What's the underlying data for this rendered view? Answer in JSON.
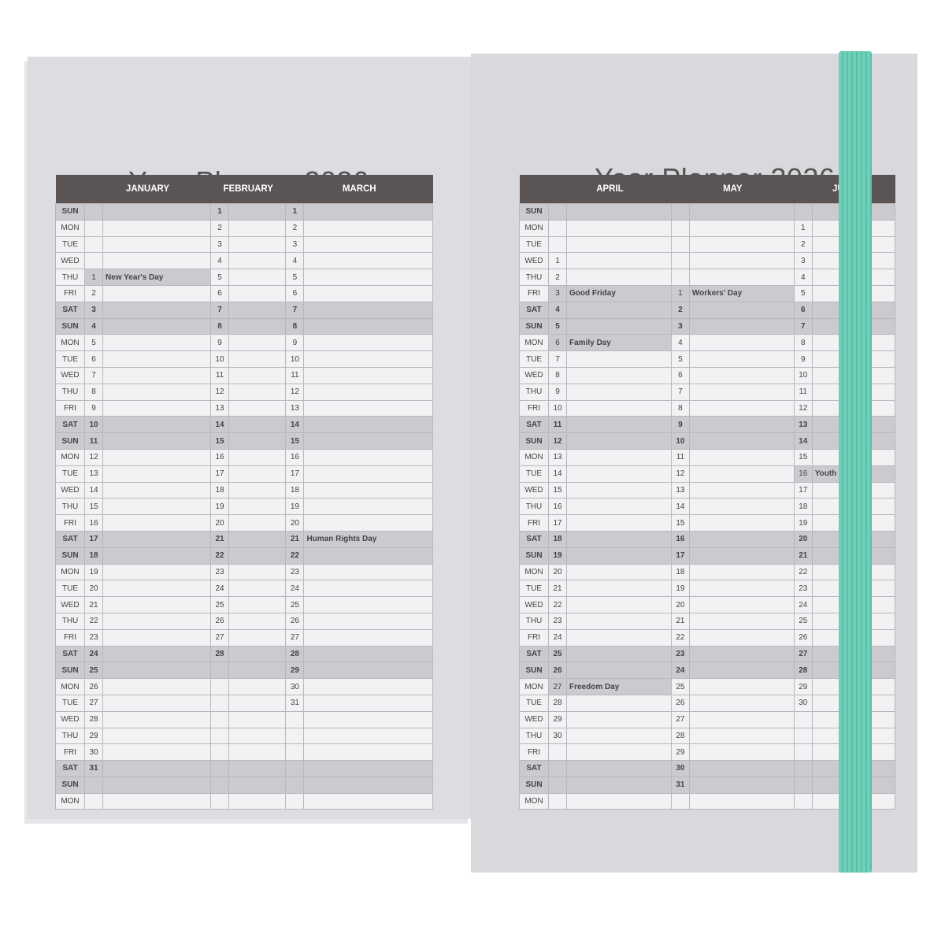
{
  "weekday_rows": [
    "SUN",
    "MON",
    "TUE",
    "WED",
    "THU",
    "FRI",
    "SAT",
    "SUN",
    "MON",
    "TUE",
    "WED",
    "THU",
    "FRI",
    "SAT",
    "SUN",
    "MON",
    "TUE",
    "WED",
    "THU",
    "FRI",
    "SAT",
    "SUN",
    "MON",
    "TUE",
    "WED",
    "THU",
    "FRI",
    "SAT",
    "SUN",
    "MON",
    "TUE",
    "WED",
    "THU",
    "FRI",
    "SAT",
    "SUN",
    "MON"
  ],
  "left_page": {
    "title": "Year Planner 2026",
    "months": [
      {
        "name": "JANUARY",
        "start_row": 4,
        "days": 31,
        "holidays": {
          "1": "New Year's Day"
        }
      },
      {
        "name": "FEBRUARY",
        "start_row": 0,
        "days": 28,
        "holidays": {}
      },
      {
        "name": "MARCH",
        "start_row": 0,
        "days": 31,
        "holidays": {
          "21": "Human Rights Day"
        }
      }
    ]
  },
  "right_page": {
    "title": "Year Planner 2026",
    "months": [
      {
        "name": "APRIL",
        "start_row": 3,
        "days": 30,
        "holidays": {
          "3": "Good Friday",
          "6": "Family Day",
          "27": "Freedom Day"
        }
      },
      {
        "name": "MAY",
        "start_row": 5,
        "days": 31,
        "holidays": {
          "1": "Workers' Day"
        }
      },
      {
        "name": "JUNE",
        "start_row": 1,
        "days": 30,
        "holidays": {
          "16": "Youth Day"
        }
      }
    ]
  },
  "colors": {
    "header": "#5a5554",
    "band": "#6fd0b9",
    "weekend": "#cbcbcf"
  }
}
